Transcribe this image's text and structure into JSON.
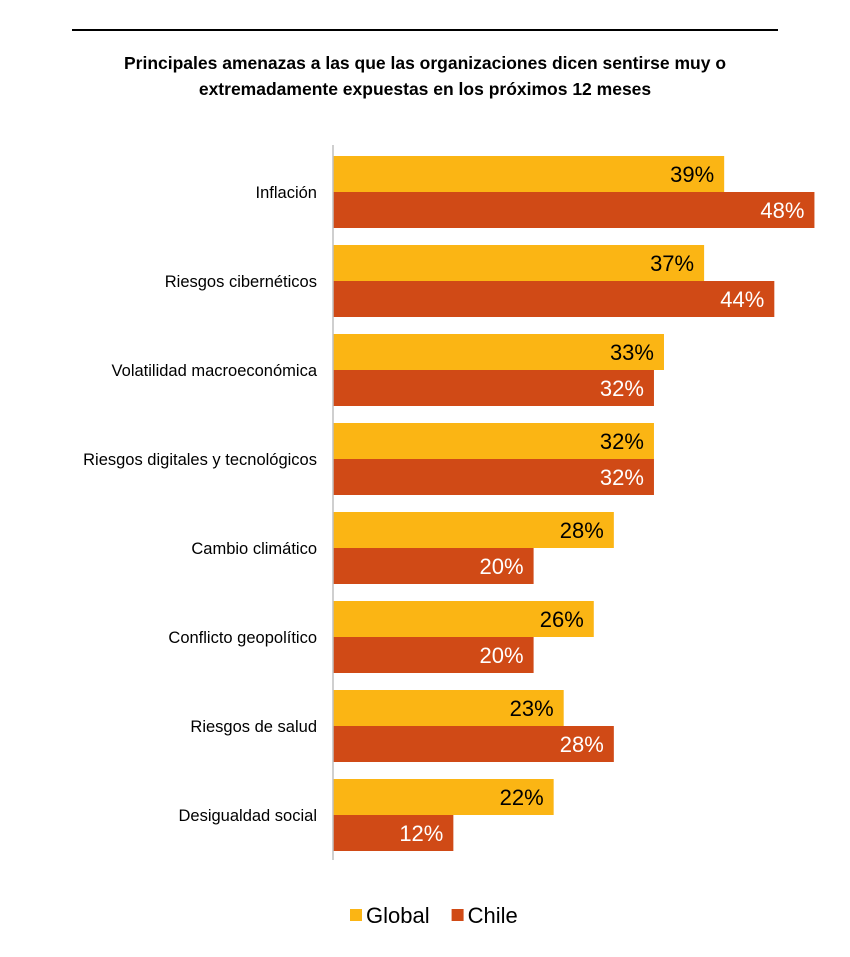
{
  "chart_data": {
    "type": "bar",
    "orientation": "horizontal",
    "title": "Principales amenazas a las que las organizaciones dicen sentirse muy o extremadamente expuestas en los próximos 12 meses",
    "categories": [
      "Inflación",
      "Riesgos cibernéticos",
      "Volatilidad macroeconómica",
      "Riesgos digitales y tecnológicos",
      "Cambio climático",
      "Conflicto geopolítico",
      "Riesgos de salud",
      "Desigualdad social"
    ],
    "series": [
      {
        "name": "Global",
        "color": "#FBB514",
        "label_color": "#000000",
        "values": [
          39,
          37,
          33,
          32,
          28,
          26,
          23,
          22
        ]
      },
      {
        "name": "Chile",
        "color": "#D04A16",
        "label_color": "#FFFFFF",
        "values": [
          48,
          44,
          32,
          32,
          20,
          20,
          28,
          12
        ]
      }
    ],
    "value_suffix": "%",
    "xlim": [
      0,
      50
    ],
    "grid": false,
    "legend": "bottom"
  }
}
